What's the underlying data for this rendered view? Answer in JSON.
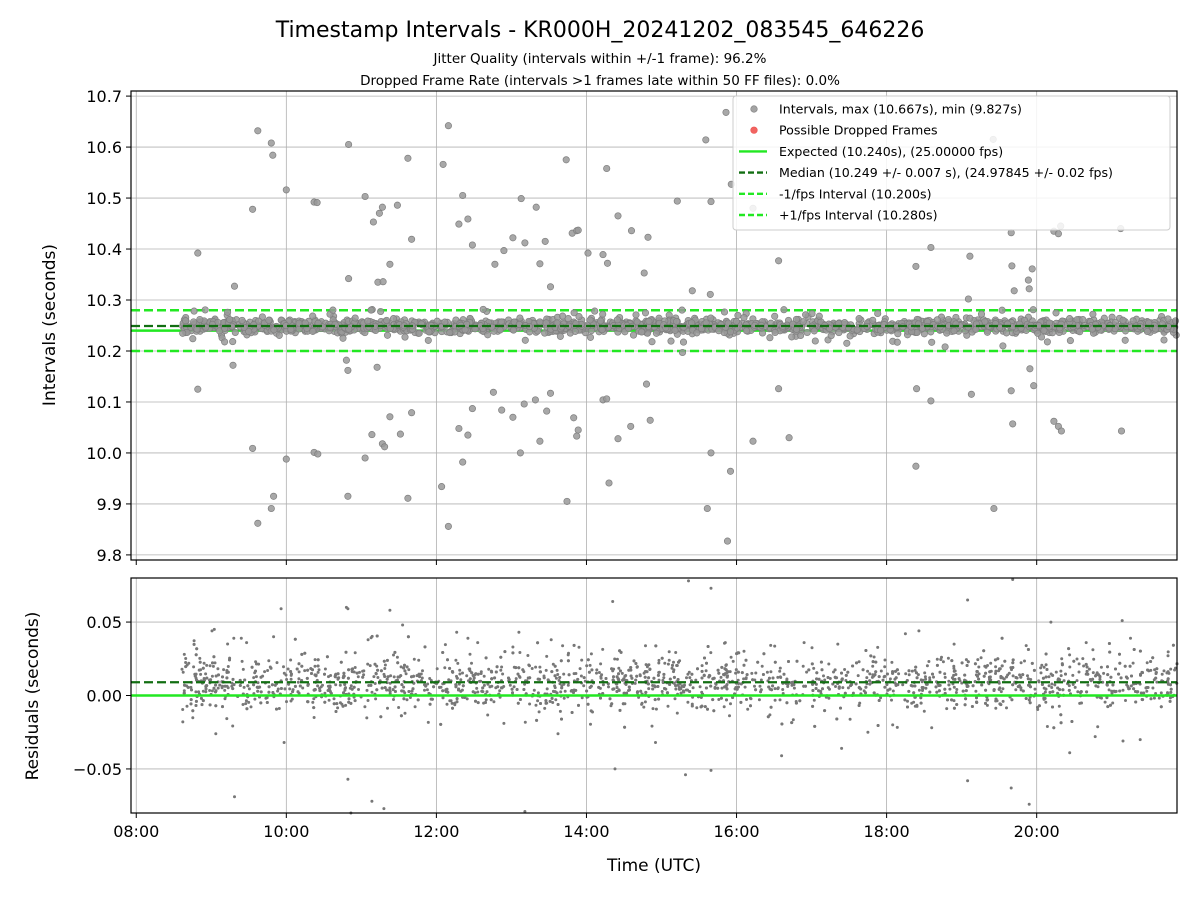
{
  "figure": {
    "title": "Timestamp Intervals - KR000H_20241202_083545_646226",
    "subtitle_line1": "Jitter Quality (intervals within +/-1 frame): 96.2%",
    "subtitle_line2": "Dropped Frame Rate (intervals >1 frames late within 50 FF files): 0.0%"
  },
  "colors": {
    "points": "#999999",
    "points_edge": "#7f7f7f",
    "residual_points": "#777777",
    "dropped": "#ef5350",
    "expected": "#22e822",
    "median": "#126e12",
    "interval_lines": "#22e822",
    "grid": "#b0b0b0"
  },
  "chart_data": [
    {
      "type": "scatter",
      "panel": "intervals",
      "ylabel": "Intervals (seconds)",
      "ylim": [
        9.79,
        10.71
      ],
      "xlim_hours": [
        7.93,
        21.87
      ],
      "grid": true,
      "legend_placement": "upper right",
      "yticks": [
        {
          "v": 9.8,
          "label": "9.8"
        },
        {
          "v": 9.9,
          "label": "9.9"
        },
        {
          "v": 10.0,
          "label": "10.0"
        },
        {
          "v": 10.1,
          "label": "10.1"
        },
        {
          "v": 10.2,
          "label": "10.2"
        },
        {
          "v": 10.3,
          "label": "10.3"
        },
        {
          "v": 10.4,
          "label": "10.4"
        },
        {
          "v": 10.5,
          "label": "10.5"
        },
        {
          "v": 10.6,
          "label": "10.6"
        },
        {
          "v": 10.7,
          "label": "10.7"
        }
      ],
      "legend": [
        {
          "kind": "dot",
          "color_key": "points",
          "label": "Intervals, max (10.667s), min (9.827s)"
        },
        {
          "kind": "dot",
          "color_key": "dropped",
          "label": "Possible Dropped Frames"
        },
        {
          "kind": "solid",
          "color_key": "expected",
          "label": "Expected (10.240s), (25.00000 fps)"
        },
        {
          "kind": "dashed",
          "color_key": "median",
          "label": "Median (10.249 +/- 0.007 s), (24.97845 +/- 0.02 fps)"
        },
        {
          "kind": "dashed",
          "color_key": "interval_lines",
          "label": "-1/fps Interval (10.200s)"
        },
        {
          "kind": "dashed",
          "color_key": "interval_lines",
          "label": "+1/fps Interval (10.280s)"
        }
      ],
      "reference_lines": {
        "expected": 10.24,
        "median": 10.249,
        "minus_interval": 10.2,
        "plus_interval": 10.28
      },
      "dense_band": {
        "x_start": 8.6,
        "x_end": 21.87,
        "center": 10.249,
        "spread": 0.007
      },
      "outliers": [
        [
          9.62,
          10.632
        ],
        [
          9.8,
          10.608
        ],
        [
          9.82,
          10.584
        ],
        [
          10.0,
          10.516
        ],
        [
          10.37,
          10.492
        ],
        [
          10.41,
          10.491
        ],
        [
          9.55,
          10.478
        ],
        [
          9.31,
          10.327
        ],
        [
          8.82,
          10.392
        ],
        [
          8.82,
          10.125
        ],
        [
          9.29,
          10.172
        ],
        [
          9.55,
          10.009
        ],
        [
          9.62,
          9.862
        ],
        [
          9.8,
          9.891
        ],
        [
          9.83,
          9.915
        ],
        [
          10.0,
          9.988
        ],
        [
          10.37,
          10.001
        ],
        [
          10.42,
          9.998
        ],
        [
          10.83,
          10.605
        ],
        [
          11.05,
          10.503
        ],
        [
          11.16,
          10.453
        ],
        [
          11.24,
          10.47
        ],
        [
          11.28,
          10.482
        ],
        [
          11.22,
          10.335
        ],
        [
          11.29,
          10.336
        ],
        [
          11.38,
          10.37
        ],
        [
          11.48,
          10.486
        ],
        [
          11.62,
          10.578
        ],
        [
          11.67,
          10.419
        ],
        [
          10.83,
          10.342
        ],
        [
          10.82,
          10.162
        ],
        [
          10.8,
          10.182
        ],
        [
          10.82,
          9.915
        ],
        [
          11.05,
          9.99
        ],
        [
          11.14,
          10.036
        ],
        [
          11.21,
          10.168
        ],
        [
          11.28,
          10.018
        ],
        [
          11.31,
          10.012
        ],
        [
          11.38,
          10.071
        ],
        [
          11.52,
          10.037
        ],
        [
          11.62,
          9.911
        ],
        [
          11.67,
          10.079
        ],
        [
          12.09,
          10.566
        ],
        [
          12.16,
          10.642
        ],
        [
          12.07,
          9.934
        ],
        [
          12.16,
          9.856
        ],
        [
          12.3,
          10.449
        ],
        [
          12.35,
          10.505
        ],
        [
          12.42,
          10.459
        ],
        [
          12.48,
          10.408
        ],
        [
          12.78,
          10.37
        ],
        [
          12.9,
          10.397
        ],
        [
          13.02,
          10.422
        ],
        [
          13.13,
          10.499
        ],
        [
          13.18,
          10.412
        ],
        [
          13.33,
          10.482
        ],
        [
          13.38,
          10.371
        ],
        [
          13.45,
          10.415
        ],
        [
          13.52,
          10.326
        ],
        [
          13.73,
          10.575
        ],
        [
          13.81,
          10.431
        ],
        [
          13.87,
          10.436
        ],
        [
          13.89,
          10.437
        ],
        [
          12.3,
          10.048
        ],
        [
          12.35,
          9.982
        ],
        [
          12.42,
          10.035
        ],
        [
          12.48,
          10.087
        ],
        [
          12.76,
          10.119
        ],
        [
          12.87,
          10.084
        ],
        [
          13.02,
          10.07
        ],
        [
          13.12,
          10.0
        ],
        [
          13.17,
          10.096
        ],
        [
          13.32,
          10.104
        ],
        [
          13.38,
          10.023
        ],
        [
          13.47,
          10.082
        ],
        [
          13.52,
          10.117
        ],
        [
          13.74,
          9.905
        ],
        [
          13.83,
          10.069
        ],
        [
          13.87,
          10.033
        ],
        [
          13.89,
          10.045
        ],
        [
          14.02,
          10.392
        ],
        [
          14.22,
          10.389
        ],
        [
          14.28,
          10.372
        ],
        [
          14.42,
          10.465
        ],
        [
          14.6,
          10.436
        ],
        [
          14.77,
          10.353
        ],
        [
          14.82,
          10.423
        ],
        [
          14.22,
          10.104
        ],
        [
          14.27,
          10.106
        ],
        [
          14.3,
          9.941
        ],
        [
          14.42,
          10.028
        ],
        [
          14.59,
          10.052
        ],
        [
          14.8,
          10.135
        ],
        [
          14.85,
          10.064
        ],
        [
          14.27,
          10.558
        ],
        [
          15.21,
          10.494
        ],
        [
          15.41,
          10.318
        ],
        [
          15.59,
          10.614
        ],
        [
          15.66,
          10.493
        ],
        [
          15.65,
          10.311
        ],
        [
          15.86,
          10.668
        ],
        [
          15.93,
          10.527
        ],
        [
          15.66,
          10.0
        ],
        [
          15.61,
          9.891
        ],
        [
          15.92,
          9.964
        ],
        [
          15.88,
          9.827
        ],
        [
          16.22,
          10.48
        ],
        [
          16.56,
          10.377
        ],
        [
          16.22,
          10.023
        ],
        [
          16.56,
          10.126
        ],
        [
          16.7,
          10.03
        ],
        [
          18.39,
          10.366
        ],
        [
          18.4,
          10.126
        ],
        [
          18.59,
          10.403
        ],
        [
          18.59,
          10.102
        ],
        [
          18.39,
          9.974
        ],
        [
          19.09,
          10.302
        ],
        [
          19.11,
          10.386
        ],
        [
          19.13,
          10.115
        ],
        [
          19.42,
          10.615
        ],
        [
          19.43,
          9.891
        ],
        [
          19.66,
          10.432
        ],
        [
          19.67,
          10.367
        ],
        [
          19.7,
          10.318
        ],
        [
          19.66,
          10.122
        ],
        [
          19.68,
          10.057
        ],
        [
          19.89,
          10.339
        ],
        [
          19.9,
          10.322
        ],
        [
          19.94,
          10.361
        ],
        [
          19.96,
          10.132
        ],
        [
          19.91,
          10.165
        ],
        [
          20.23,
          10.435
        ],
        [
          20.29,
          10.43
        ],
        [
          20.32,
          10.445
        ],
        [
          20.23,
          10.062
        ],
        [
          20.29,
          10.052
        ],
        [
          20.33,
          10.043
        ],
        [
          21.12,
          10.44
        ],
        [
          21.13,
          10.043
        ],
        [
          15.28,
          10.197
        ],
        [
          16.75,
          10.253
        ],
        [
          17.47,
          10.215
        ],
        [
          18.78,
          10.208
        ],
        [
          19.55,
          10.21
        ],
        [
          21.18,
          10.221
        ],
        [
          20.74,
          10.243
        ],
        [
          17.36,
          10.254
        ],
        [
          16.92,
          10.271
        ]
      ]
    },
    {
      "type": "scatter",
      "panel": "residuals",
      "ylabel": "Residuals (seconds)",
      "xlabel": "Time (UTC)",
      "ylim": [
        -0.08,
        0.08
      ],
      "grid": true,
      "yticks": [
        {
          "v": -0.05,
          "label": "−0.05"
        },
        {
          "v": 0.0,
          "label": "0.00"
        },
        {
          "v": 0.05,
          "label": "0.05"
        }
      ],
      "xticks": [
        {
          "v": 8,
          "label": "08:00"
        },
        {
          "v": 10,
          "label": "10:00"
        },
        {
          "v": 12,
          "label": "12:00"
        },
        {
          "v": 14,
          "label": "14:00"
        },
        {
          "v": 16,
          "label": "16:00"
        },
        {
          "v": 18,
          "label": "18:00"
        },
        {
          "v": 20,
          "label": "20:00"
        }
      ],
      "reference_lines": {
        "expected": 0.0,
        "median": 0.009
      },
      "dense_band": {
        "x_start": 8.6,
        "x_end": 21.87,
        "center": 0.009,
        "spread": 0.009
      },
      "outliers": [
        [
          8.64,
          0.028
        ],
        [
          8.7,
          0.022
        ],
        [
          8.62,
          -0.018
        ],
        [
          9.01,
          0.044
        ],
        [
          9.04,
          0.045
        ],
        [
          9.06,
          -0.026
        ],
        [
          9.3,
          0.039
        ],
        [
          9.31,
          -0.069
        ],
        [
          9.4,
          0.039
        ],
        [
          9.47,
          0.036
        ],
        [
          9.83,
          0.04
        ],
        [
          9.97,
          -0.032
        ],
        [
          9.93,
          0.059
        ],
        [
          10.37,
          -0.015
        ],
        [
          10.82,
          0.059
        ],
        [
          10.8,
          0.06
        ],
        [
          10.82,
          -0.057
        ],
        [
          10.86,
          -0.08
        ],
        [
          11.09,
          0.038
        ],
        [
          11.14,
          -0.072
        ],
        [
          11.3,
          -0.077
        ],
        [
          11.38,
          0.058
        ],
        [
          11.48,
          0.026
        ],
        [
          11.55,
          0.048
        ],
        [
          12.27,
          0.043
        ],
        [
          12.42,
          0.039
        ],
        [
          12.55,
          0.036
        ],
        [
          13.02,
          0.033
        ],
        [
          13.1,
          0.043
        ],
        [
          13.18,
          -0.079
        ],
        [
          13.53,
          0.038
        ],
        [
          13.62,
          -0.026
        ],
        [
          14.35,
          0.064
        ],
        [
          14.38,
          -0.05
        ],
        [
          15.32,
          -0.054
        ],
        [
          15.36,
          0.078
        ],
        [
          15.66,
          -0.051
        ],
        [
          15.66,
          0.073
        ],
        [
          15.85,
          0.036
        ],
        [
          16.03,
          0.029
        ],
        [
          16.6,
          -0.041
        ],
        [
          16.9,
          0.036
        ],
        [
          17.35,
          0.035
        ],
        [
          17.4,
          -0.036
        ],
        [
          18.25,
          0.042
        ],
        [
          18.43,
          0.044
        ],
        [
          18.9,
          0.035
        ],
        [
          19.08,
          0.065
        ],
        [
          19.08,
          -0.058
        ],
        [
          19.66,
          -0.063
        ],
        [
          19.68,
          0.079
        ],
        [
          19.86,
          0.034
        ],
        [
          19.9,
          -0.074
        ],
        [
          20.19,
          0.05
        ],
        [
          20.44,
          -0.039
        ],
        [
          20.66,
          0.036
        ],
        [
          21.14,
          0.051
        ],
        [
          21.25,
          0.039
        ],
        [
          21.38,
          -0.03
        ],
        [
          21.15,
          -0.031
        ],
        [
          12.9,
          -0.019
        ],
        [
          14.92,
          -0.032
        ],
        [
          17.75,
          -0.025
        ],
        [
          20.78,
          -0.028
        ]
      ]
    }
  ]
}
